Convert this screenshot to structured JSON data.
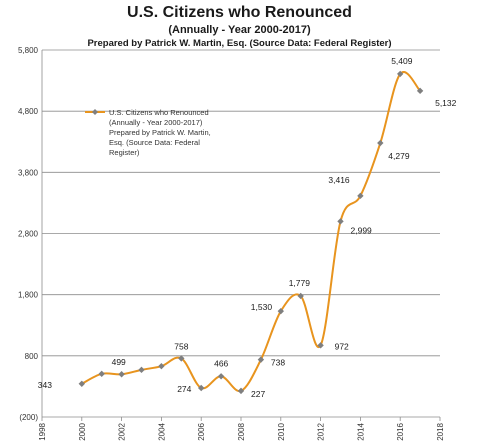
{
  "chart_data": {
    "type": "line",
    "title": "U.S. Citizens who Renounced",
    "subtitle": "(Annually - Year 2000-2017)",
    "source_note": "Prepared by Patrick W. Martin, Esq. (Source Data: Federal Register)",
    "legend": {
      "placement": "upper-left",
      "lines": [
        "U.S. Citizens who Renounced",
        "(Annually - Year 2000-2017)",
        "Prepared by Patrick W. Martin,",
        "Esq. (Source Data: Federal",
        "Register)"
      ]
    },
    "xlim": [
      1998,
      2018
    ],
    "ylim": [
      -200,
      5800
    ],
    "x_ticks": [
      1998,
      2000,
      2002,
      2004,
      2006,
      2008,
      2010,
      2012,
      2014,
      2016,
      2018
    ],
    "y_ticks": [
      -200,
      800,
      1800,
      2800,
      3800,
      4800,
      5800
    ],
    "y_tick_labels": [
      "(200)",
      "800",
      "1,800",
      "2,800",
      "3,800",
      "4,800",
      "5,800"
    ],
    "grid": "horizontal",
    "series": [
      {
        "name": "U.S. Citizens who Renounced (Annually - Year 2000-2017) Prepared by Patrick W. Martin, Esq. (Source Data: Federal Register)",
        "color": "#e8941e",
        "marker_color": "#7f7f7f",
        "x": [
          2000,
          2001,
          2002,
          2003,
          2004,
          2005,
          2006,
          2007,
          2008,
          2009,
          2010,
          2011,
          2012,
          2013,
          2014,
          2015,
          2016,
          2017
        ],
        "values": [
          343,
          506,
          499,
          571,
          631,
          758,
          274,
          466,
          227,
          738,
          1530,
          1779,
          972,
          2999,
          3416,
          4279,
          5409,
          5132
        ]
      }
    ],
    "data_labels": [
      {
        "x": 2000,
        "text": "343"
      },
      {
        "x": 2002,
        "text": "499"
      },
      {
        "x": 2005,
        "text": "758"
      },
      {
        "x": 2006,
        "text": "274"
      },
      {
        "x": 2007,
        "text": "466"
      },
      {
        "x": 2008,
        "text": "227"
      },
      {
        "x": 2009,
        "text": "738"
      },
      {
        "x": 2010,
        "text": "1,530"
      },
      {
        "x": 2011,
        "text": "1,779"
      },
      {
        "x": 2012,
        "text": "972"
      },
      {
        "x": 2013,
        "text": "2,999"
      },
      {
        "x": 2014,
        "text": "3,416"
      },
      {
        "x": 2015,
        "text": "4,279"
      },
      {
        "x": 2016,
        "text": "5,409"
      },
      {
        "x": 2017,
        "text": "5,132"
      }
    ]
  }
}
